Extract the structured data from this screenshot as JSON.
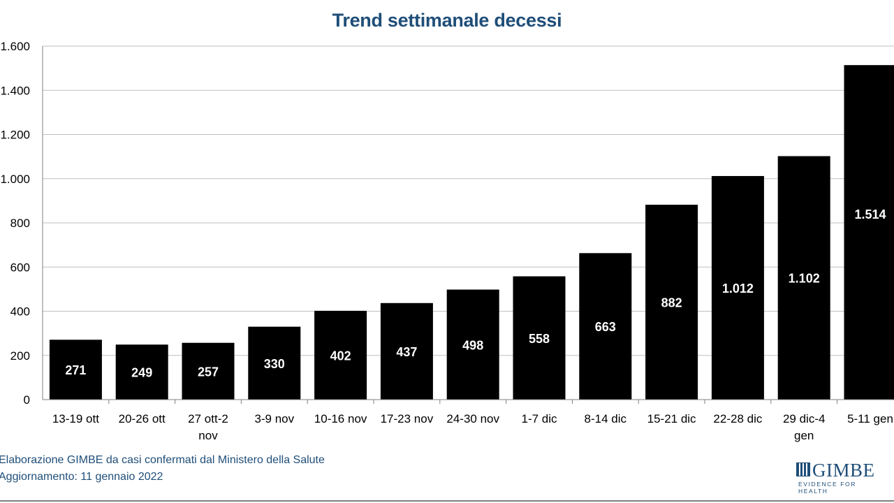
{
  "chart_data": {
    "type": "bar",
    "title": "Trend settimanale decessi",
    "xlabel": "",
    "ylabel": "",
    "categories": [
      "13-19 ott",
      "20-26 ott",
      "27 ott-2 nov",
      "3-9 nov",
      "10-16 nov",
      "17-23 nov",
      "24-30 nov",
      "1-7 dic",
      "8-14 dic",
      "15-21 dic",
      "22-28 dic",
      "29 dic-4 gen",
      "5-11 gen"
    ],
    "values": [
      271,
      249,
      257,
      330,
      402,
      437,
      498,
      558,
      663,
      882,
      1012,
      1102,
      1514
    ],
    "data_labels": [
      "271",
      "249",
      "257",
      "330",
      "402",
      "437",
      "498",
      "558",
      "663",
      "882",
      "1.012",
      "1.102",
      "1.514"
    ],
    "ylim": [
      0,
      1600
    ],
    "yticks": [
      0,
      200,
      400,
      600,
      800,
      1000,
      1200,
      1400,
      1600
    ],
    "ytick_labels": [
      "0",
      "200",
      "400",
      "600",
      "800",
      "1.000",
      "1.200",
      "1.400",
      "1.600"
    ],
    "grid": true,
    "legend": "none",
    "bar_color": "#000000",
    "label_color": "#ffffff"
  },
  "footer": {
    "source": "Elaborazione GIMBE da casi confermati dal Ministero della Salute",
    "updated": "Aggiornamento: 11 gennaio 2022"
  },
  "logo": {
    "name": "GIMBE",
    "tagline": "EVIDENCE FOR HEALTH",
    "color": "#1f4e79"
  },
  "colors": {
    "title": "#1f4e79",
    "grid": "#bfbfbf",
    "axis": "#7f7f7f"
  }
}
